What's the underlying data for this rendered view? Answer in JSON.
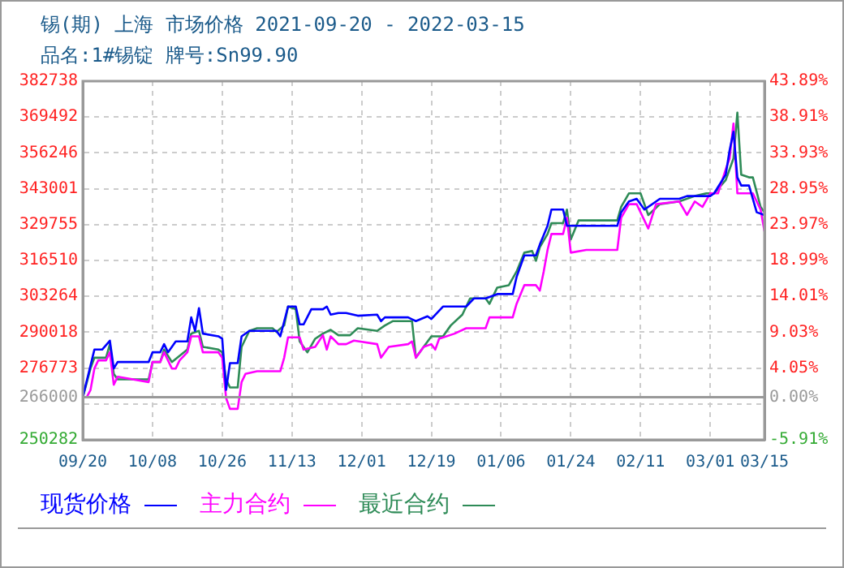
{
  "chart_data": {
    "type": "line",
    "title": "锡(期) 上海 市场价格 2021-09-20 - 2022-03-15",
    "subtitle": "品名:1#锡锭 牌号:Sn99.90",
    "xlim": [
      "2021-09-20",
      "2022-03-15"
    ],
    "xticks": [
      {
        "value": "2021-09-20",
        "label": "09/20"
      },
      {
        "value": "2021-10-08",
        "label": "10/08"
      },
      {
        "value": "2021-10-26",
        "label": "10/26"
      },
      {
        "value": "2021-11-13",
        "label": "11/13"
      },
      {
        "value": "2021-12-01",
        "label": "12/01"
      },
      {
        "value": "2021-12-19",
        "label": "12/19"
      },
      {
        "value": "2022-01-06",
        "label": "01/06"
      },
      {
        "value": "2022-01-24",
        "label": "01/24"
      },
      {
        "value": "2022-02-11",
        "label": "02/11"
      },
      {
        "value": "2022-03-01",
        "label": "03/01"
      },
      {
        "value": "2022-03-15",
        "label": "03/15"
      }
    ],
    "ylim": [
      250282,
      382738
    ],
    "yticks": [
      250282,
      {
        "value": 263528,
        "label": null
      },
      266000,
      276773,
      290018,
      303264,
      316510,
      329755,
      343001,
      356246,
      369492,
      382738
    ],
    "y2lim": [
      -5.91,
      43.89
    ],
    "y2ticks": [
      {
        "value": -5.91,
        "label": "-5.91%"
      },
      {
        "value": 0,
        "label": "0.00%"
      },
      {
        "value": 4.05,
        "label": "4.05%"
      },
      {
        "value": 9.03,
        "label": "9.03%"
      },
      {
        "value": 14.01,
        "label": "14.01%"
      },
      {
        "value": 18.99,
        "label": "18.99%"
      },
      {
        "value": 23.97,
        "label": "23.97%"
      },
      {
        "value": 28.95,
        "label": "28.95%"
      },
      {
        "value": 33.93,
        "label": "33.93%"
      },
      {
        "value": 38.91,
        "label": "38.91%"
      },
      {
        "value": 43.89,
        "label": "43.89%"
      }
    ],
    "grid": true,
    "legend": "bottom",
    "line_style": "solid",
    "ref_lines": [
      {
        "axis": "y",
        "value": 266000,
        "color": "#999999"
      }
    ],
    "series": [
      {
        "name": "现货价格",
        "color": "#0000ff",
        "x": [
          "2021-09-20",
          "2021-09-23",
          "2021-09-25",
          "2021-09-27",
          "2021-09-28",
          "2021-09-29",
          "2021-10-07",
          "2021-10-08",
          "2021-10-10",
          "2021-10-11",
          "2021-10-12",
          "2021-10-14",
          "2021-10-17",
          "2021-10-18",
          "2021-10-19",
          "2021-10-20",
          "2021-10-21",
          "2021-10-25",
          "2021-10-26",
          "2021-10-27",
          "2021-10-28",
          "2021-10-30",
          "2021-10-31",
          "2021-11-02",
          "2021-11-09",
          "2021-11-10",
          "2021-11-12",
          "2021-11-14",
          "2021-11-15",
          "2021-11-16",
          "2021-11-18",
          "2021-11-21",
          "2021-11-22",
          "2021-11-23",
          "2021-11-25",
          "2021-11-27",
          "2021-11-30",
          "2021-12-05",
          "2021-12-06",
          "2021-12-07",
          "2021-12-13",
          "2021-12-15",
          "2021-12-18",
          "2021-12-19",
          "2021-12-22",
          "2021-12-28",
          "2021-12-30",
          "2022-01-02",
          "2022-01-05",
          "2022-01-09",
          "2022-01-10",
          "2022-01-12",
          "2022-01-15",
          "2022-01-16",
          "2022-01-18",
          "2022-01-19",
          "2022-01-22",
          "2022-01-23",
          "2022-02-05",
          "2022-02-06",
          "2022-02-08",
          "2022-02-10",
          "2022-02-12",
          "2022-02-16",
          "2022-02-21",
          "2022-02-23",
          "2022-03-01",
          "2022-03-02",
          "2022-03-05",
          "2022-03-06",
          "2022-03-07",
          "2022-03-08",
          "2022-03-09",
          "2022-03-11",
          "2022-03-13",
          "2022-03-15"
        ],
        "values": [
          266000,
          283600,
          283600,
          286900,
          276600,
          279000,
          279000,
          282600,
          282600,
          285600,
          282600,
          286600,
          286600,
          295500,
          290500,
          298900,
          289500,
          288500,
          287600,
          268700,
          278600,
          278600,
          288500,
          290500,
          290500,
          288500,
          299500,
          299500,
          292900,
          292900,
          298500,
          298500,
          299500,
          296500,
          297100,
          297100,
          296100,
          296500,
          294100,
          295500,
          295500,
          294100,
          295900,
          294900,
          299500,
          299500,
          302500,
          302500,
          304100,
          304100,
          310400,
          318400,
          318400,
          322400,
          329300,
          335300,
          335300,
          329300,
          329300,
          334300,
          338300,
          339300,
          335300,
          339300,
          339300,
          340300,
          340300,
          341300,
          348200,
          357200,
          364100,
          347200,
          344200,
          344200,
          334300,
          333300
        ]
      },
      {
        "name": "主力合约",
        "color": "#ff00ff",
        "x": [
          "2021-09-21",
          "2021-09-22",
          "2021-09-23",
          "2021-09-24",
          "2021-09-26",
          "2021-09-27",
          "2021-09-28",
          "2021-09-29",
          "2021-10-07",
          "2021-10-08",
          "2021-10-10",
          "2021-10-11",
          "2021-10-13",
          "2021-10-14",
          "2021-10-15",
          "2021-10-17",
          "2021-10-18",
          "2021-10-20",
          "2021-10-21",
          "2021-10-25",
          "2021-10-26",
          "2021-10-27",
          "2021-10-28",
          "2021-10-30",
          "2021-10-31",
          "2021-11-01",
          "2021-11-04",
          "2021-11-10",
          "2021-11-11",
          "2021-11-12",
          "2021-11-15",
          "2021-11-16",
          "2021-11-19",
          "2021-11-21",
          "2021-11-22",
          "2021-11-23",
          "2021-11-25",
          "2021-11-27",
          "2021-11-29",
          "2021-12-05",
          "2021-12-06",
          "2021-12-08",
          "2021-12-13",
          "2021-12-14",
          "2021-12-15",
          "2021-12-17",
          "2021-12-19",
          "2021-12-20",
          "2021-12-21",
          "2021-12-25",
          "2021-12-28",
          "2022-01-02",
          "2022-01-03",
          "2022-01-09",
          "2022-01-10",
          "2022-01-12",
          "2022-01-15",
          "2022-01-16",
          "2022-01-17",
          "2022-01-18",
          "2022-01-19",
          "2022-01-22",
          "2022-01-23",
          "2022-01-24",
          "2022-01-28",
          "2022-02-05",
          "2022-02-06",
          "2022-02-08",
          "2022-02-10",
          "2022-02-13",
          "2022-02-15",
          "2022-02-21",
          "2022-02-23",
          "2022-02-25",
          "2022-02-27",
          "2022-03-01",
          "2022-03-03",
          "2022-03-05",
          "2022-03-06",
          "2022-03-07",
          "2022-03-08",
          "2022-03-12",
          "2022-03-14",
          "2022-03-15"
        ],
        "values": [
          266000,
          268700,
          276600,
          279600,
          279600,
          282600,
          270600,
          273600,
          271600,
          279000,
          279000,
          282600,
          276600,
          276600,
          279600,
          282600,
          288500,
          288500,
          282600,
          282600,
          280600,
          265700,
          261700,
          261700,
          271600,
          274600,
          275600,
          275600,
          280600,
          288100,
          288100,
          283600,
          284600,
          288900,
          283600,
          288500,
          285600,
          285600,
          286900,
          285600,
          280600,
          284600,
          285600,
          286600,
          280600,
          284600,
          285600,
          283600,
          287600,
          289500,
          291500,
          291500,
          295500,
          295500,
          300500,
          307400,
          307400,
          305400,
          312400,
          320400,
          326300,
          326300,
          332300,
          319400,
          320400,
          320400,
          332300,
          337300,
          337300,
          328300,
          337300,
          338300,
          333300,
          338300,
          336300,
          341300,
          341300,
          350200,
          354200,
          367100,
          341300,
          341300,
          335300,
          327300
        ]
      },
      {
        "name": "最近合约",
        "color": "#2e8b57",
        "x": [
          "2021-09-20",
          "2021-09-22",
          "2021-09-23",
          "2021-09-26",
          "2021-09-27",
          "2021-09-28",
          "2021-09-29",
          "2021-10-07",
          "2021-10-08",
          "2021-10-10",
          "2021-10-11",
          "2021-10-13",
          "2021-10-17",
          "2021-10-18",
          "2021-10-20",
          "2021-10-21",
          "2021-10-25",
          "2021-10-26",
          "2021-10-27",
          "2021-10-28",
          "2021-10-30",
          "2021-10-31",
          "2021-11-02",
          "2021-11-04",
          "2021-11-08",
          "2021-11-09",
          "2021-11-11",
          "2021-11-12",
          "2021-11-14",
          "2021-11-15",
          "2021-11-17",
          "2021-11-19",
          "2021-11-21",
          "2021-11-23",
          "2021-11-25",
          "2021-11-28",
          "2021-11-30",
          "2021-12-05",
          "2021-12-07",
          "2021-12-09",
          "2021-12-14",
          "2021-12-15",
          "2021-12-17",
          "2021-12-19",
          "2021-12-22",
          "2021-12-24",
          "2021-12-27",
          "2021-12-29",
          "2022-01-02",
          "2022-01-03",
          "2022-01-05",
          "2022-01-08",
          "2022-01-10",
          "2022-01-12",
          "2022-01-14",
          "2022-01-15",
          "2022-01-16",
          "2022-01-18",
          "2022-01-19",
          "2022-01-22",
          "2022-01-23",
          "2022-01-24",
          "2022-01-26",
          "2022-02-05",
          "2022-02-06",
          "2022-02-08",
          "2022-02-11",
          "2022-02-13",
          "2022-02-16",
          "2022-02-21",
          "2022-02-25",
          "2022-02-28",
          "2022-03-02",
          "2022-03-05",
          "2022-03-07",
          "2022-03-08",
          "2022-03-09",
          "2022-03-11",
          "2022-03-12",
          "2022-03-14",
          "2022-03-15"
        ],
        "values": [
          266000,
          276600,
          280600,
          280600,
          285600,
          274600,
          272600,
          272600,
          279000,
          279000,
          283600,
          279000,
          283600,
          289500,
          290500,
          284600,
          283600,
          282600,
          272600,
          269600,
          269600,
          284600,
          290500,
          291500,
          291500,
          290100,
          292500,
          299500,
          298500,
          286600,
          282600,
          287600,
          289500,
          290900,
          288900,
          288900,
          291500,
          290500,
          292500,
          294100,
          294100,
          280600,
          284600,
          288500,
          288500,
          292500,
          296500,
          302500,
          302500,
          300500,
          306500,
          307400,
          312400,
          319400,
          320000,
          316400,
          321400,
          326300,
          330300,
          330300,
          335300,
          324300,
          331300,
          331300,
          336300,
          341300,
          341300,
          333300,
          337300,
          338300,
          340300,
          341300,
          341300,
          346200,
          354200,
          371100,
          348200,
          347200,
          347200,
          336300,
          334300
        ]
      }
    ]
  }
}
